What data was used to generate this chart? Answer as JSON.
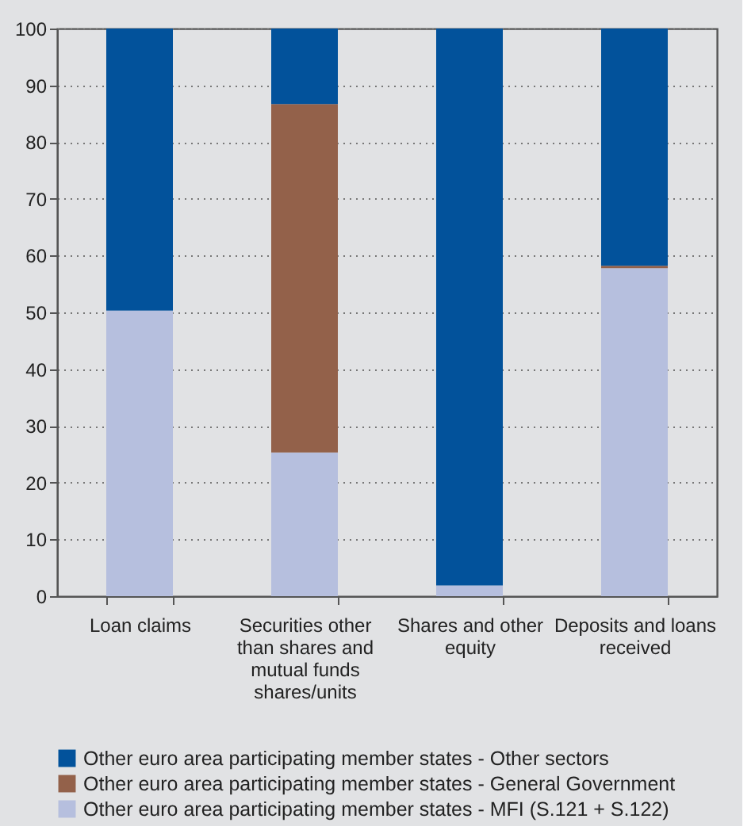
{
  "chart_data": {
    "type": "bar",
    "stacked": true,
    "categories": [
      "Loan claims",
      "Securities other than shares and mutual funds shares/units",
      "Shares and other equity",
      "Deposits and loans received"
    ],
    "series": [
      {
        "name": "Other euro area participating member states - MFI (S.121 + S.122)",
        "color": "#b6bfde",
        "values": [
          50.3,
          25.3,
          1.9,
          57.8
        ]
      },
      {
        "name": "Other euro area participating member states - General Government",
        "color": "#93614a",
        "values": [
          0,
          61.4,
          0,
          0.4
        ]
      },
      {
        "name": "Other euro area participating member states - Other sectors",
        "color": "#02529b",
        "values": [
          49.7,
          13.3,
          98.1,
          41.8
        ]
      }
    ],
    "ylim": [
      0,
      100
    ],
    "yticks": [
      0,
      10,
      20,
      30,
      40,
      50,
      60,
      70,
      80,
      90,
      100
    ],
    "grid": "y",
    "legend": "bottom"
  }
}
